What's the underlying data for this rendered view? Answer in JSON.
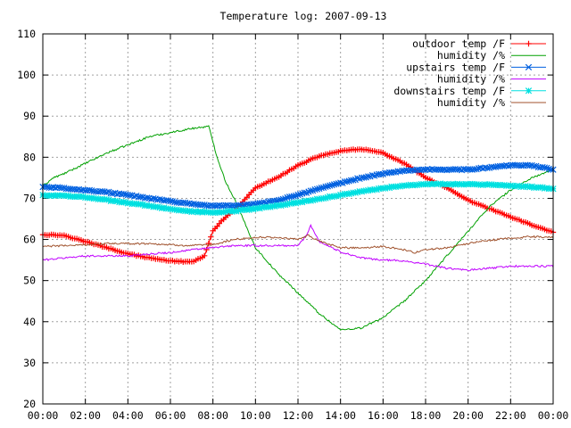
{
  "chart_data": {
    "type": "line",
    "title": "Temperature log: 2007-09-13",
    "xlabel": "",
    "ylabel": "",
    "xlim": [
      0,
      24
    ],
    "ylim": [
      20,
      110
    ],
    "grid": true,
    "legend_position": "top-right",
    "x_tick_labels": [
      "00:00",
      "02:00",
      "04:00",
      "06:00",
      "08:00",
      "10:00",
      "12:00",
      "14:00",
      "16:00",
      "18:00",
      "20:00",
      "22:00",
      "00:00"
    ],
    "y_tick_labels": [
      "20",
      "30",
      "40",
      "50",
      "60",
      "70",
      "80",
      "90",
      "100",
      "110"
    ],
    "series": [
      {
        "name": "outdoor temp /F",
        "color": "#ff0000",
        "marker": "plus",
        "x": [
          0,
          1,
          2,
          3,
          4,
          5,
          6,
          7,
          7.6,
          8,
          8.5,
          9,
          10,
          11,
          12,
          13,
          14,
          15,
          16,
          17,
          18,
          19,
          20,
          21,
          22,
          23,
          24
        ],
        "y": [
          61.2,
          61,
          59.5,
          58,
          56.5,
          55.5,
          54.8,
          54.5,
          56,
          62,
          65,
          67,
          72.5,
          75,
          78,
          80.3,
          81.5,
          82,
          81,
          78.5,
          75,
          72.5,
          69.5,
          67.5,
          65.5,
          63.5,
          61.8
        ]
      },
      {
        "name": "humidity /%",
        "color": "#00a000",
        "marker": "none",
        "x": [
          0,
          0.5,
          1,
          2,
          3,
          4,
          5,
          6,
          7,
          7.8,
          8.2,
          8.6,
          9,
          9.5,
          10,
          11,
          12,
          13,
          14,
          15,
          16,
          17,
          18,
          19,
          20,
          21,
          22,
          23,
          24
        ],
        "y": [
          73,
          75,
          76,
          78.5,
          81,
          83,
          85,
          86,
          87,
          87.5,
          80,
          74,
          70,
          64,
          58,
          52,
          47,
          42,
          38,
          38.5,
          41,
          45,
          50,
          56,
          62,
          68,
          72,
          75,
          77
        ]
      },
      {
        "name": "upstairs temp /F",
        "color": "#0060e0",
        "marker": "cross",
        "x": [
          0,
          1,
          2,
          3,
          4,
          5,
          6,
          7,
          8,
          9,
          10,
          11,
          12,
          13,
          14,
          15,
          16,
          17,
          18,
          19,
          20,
          21,
          22,
          23,
          24
        ],
        "y": [
          72.8,
          72.5,
          72,
          71.5,
          70.8,
          70,
          69.3,
          68.6,
          68.2,
          68.2,
          68.6,
          69.5,
          70.8,
          72.3,
          73.7,
          75,
          76,
          76.8,
          77,
          77,
          77,
          77.5,
          78,
          78,
          77
        ]
      },
      {
        "name": "humidity /%",
        "color": "#c000ff",
        "marker": "none",
        "x": [
          0,
          1,
          2,
          3,
          4,
          5,
          6,
          7,
          8,
          9,
          10,
          11,
          12,
          12.4,
          12.6,
          13,
          14,
          15,
          16,
          17,
          18,
          19,
          20,
          21,
          22,
          23,
          24
        ],
        "y": [
          55,
          55.5,
          56,
          56,
          56,
          56.5,
          56.8,
          57.5,
          58,
          58.5,
          58.5,
          58.5,
          58.5,
          61,
          63.5,
          59.5,
          57,
          55.5,
          55,
          54.8,
          54,
          53,
          52.5,
          53,
          53.5,
          53.5,
          53.5
        ]
      },
      {
        "name": "downstairs temp /F",
        "color": "#00e0e0",
        "marker": "star",
        "x": [
          0,
          1,
          2,
          3,
          4,
          5,
          6,
          7,
          8,
          9,
          10,
          11,
          12,
          13,
          14,
          15,
          16,
          17,
          18,
          19,
          20,
          21,
          22,
          23,
          24
        ],
        "y": [
          70.8,
          70.6,
          70.3,
          69.6,
          68.9,
          68.2,
          67.4,
          66.8,
          66.6,
          66.9,
          67.5,
          68.2,
          69,
          69.9,
          70.8,
          71.7,
          72.5,
          73.1,
          73.5,
          73.5,
          73.4,
          73.3,
          73,
          72.8,
          72.3
        ]
      },
      {
        "name": "humidity /%",
        "color": "#a0522d",
        "marker": "none",
        "x": [
          0,
          1,
          2,
          3,
          4,
          5,
          6,
          7,
          8,
          9,
          10,
          11,
          12,
          12.5,
          13,
          14,
          15,
          16,
          17,
          17.5,
          18,
          19,
          20,
          21,
          22,
          23,
          24
        ],
        "y": [
          58.3,
          58.5,
          58.7,
          59,
          59,
          59,
          58.7,
          58.5,
          58.7,
          60,
          60.5,
          60.5,
          60,
          61,
          59.5,
          58,
          58,
          58.3,
          57.5,
          56.8,
          57.5,
          58,
          59,
          59.8,
          60.3,
          60.7,
          60.5
        ]
      }
    ]
  }
}
